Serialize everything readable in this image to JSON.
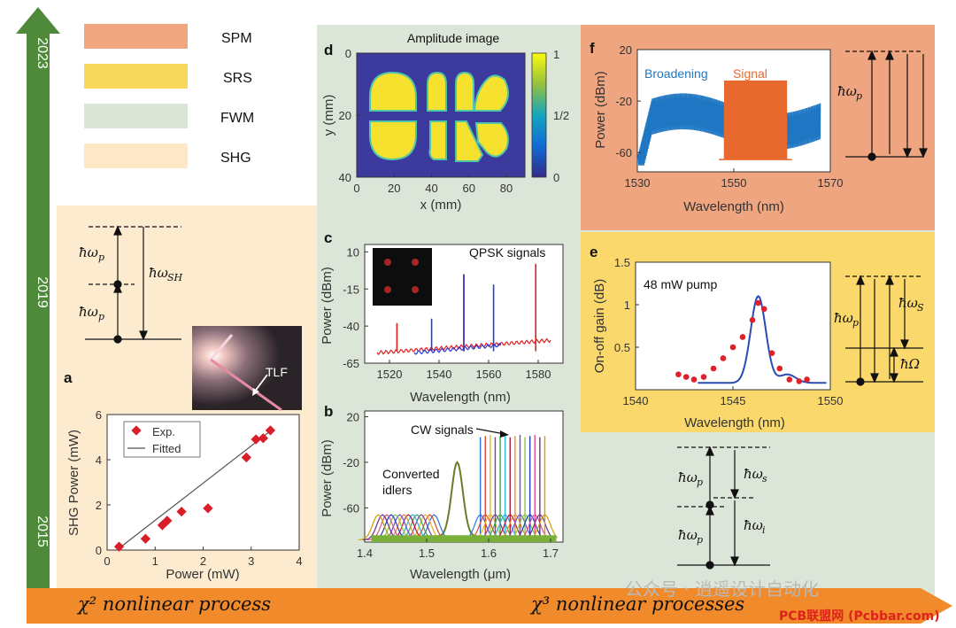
{
  "colors": {
    "spm": "#f0a77f",
    "srs": "#f7d85a",
    "fwm": "#dbe5d7",
    "shg": "#fde7c7",
    "timeline": "#4e8a3a",
    "arrow_bar": "#f08a2a",
    "panel_f_bg": "#eea580",
    "panel_e_bg": "#fad86b",
    "green_bg": "#dce6d8",
    "cream_bg": "#fdebd0"
  },
  "legend": [
    {
      "label": "SPM",
      "color_key": "spm"
    },
    {
      "label": "SRS",
      "color_key": "srs"
    },
    {
      "label": "FWM",
      "color_key": "fwm"
    },
    {
      "label": "SHG",
      "color_key": "shg"
    }
  ],
  "timeline": {
    "years": [
      "2023",
      "2019",
      "2015"
    ]
  },
  "bottom_bar": {
    "chi2": "χ² nonlinear process",
    "chi3": "χ³ nonlinear processes"
  },
  "watermark": {
    "text": "公众号 · 逍遥设计自动化",
    "corner": "PCB联盟网 (Pcbbar.com)"
  },
  "shg_diagram": {
    "labels": [
      "ħω",
      "p",
      "ħω",
      "p",
      "ħω",
      "SH"
    ]
  },
  "fwm_diagram": {
    "labels": [
      "ħω",
      "p",
      "ħω",
      "p",
      "ħω",
      "s",
      "ħω",
      "i"
    ]
  },
  "srs_diagram": {
    "labels": [
      "ħω",
      "p",
      "ħω",
      "S",
      "ħΩ"
    ]
  },
  "spm_diagram": {
    "labels": [
      "ħω",
      "p"
    ]
  },
  "photo": {
    "label": "TLF"
  },
  "chart_data": [
    {
      "panel": "a",
      "type": "scatter",
      "xlabel": "Power (mW)",
      "ylabel": "SHG Power (mW)",
      "xlim": [
        0,
        4
      ],
      "ylim": [
        0,
        6
      ],
      "xticks": [
        "0",
        "1",
        "2",
        "3",
        "4"
      ],
      "yticks": [
        "0",
        "2",
        "4",
        "6"
      ],
      "legend": [
        "Exp.",
        "Fitted"
      ],
      "series": [
        {
          "name": "Exp.",
          "x": [
            0.25,
            0.8,
            1.15,
            1.25,
            1.55,
            2.1,
            2.9,
            3.1,
            3.25,
            3.4
          ],
          "y": [
            0.15,
            0.5,
            1.1,
            1.3,
            1.7,
            1.85,
            4.1,
            4.9,
            4.95,
            5.3
          ]
        },
        {
          "name": "Fitted",
          "x": [
            0.2,
            3.45
          ],
          "y": [
            0.0,
            5.35
          ]
        }
      ]
    },
    {
      "panel": "d",
      "type": "heatmap",
      "title": "Amplitude image",
      "xlabel": "x (mm)",
      "ylabel": "y (mm)",
      "xticks": [
        "0",
        "20",
        "40",
        "60",
        "80"
      ],
      "yticks": [
        "0",
        "20",
        "40"
      ],
      "colorbar_ticks": [
        "1",
        "1/2",
        "0"
      ]
    },
    {
      "panel": "c",
      "type": "line",
      "xlabel": "Wavelength (nm)",
      "ylabel": "Power (dBm)",
      "xticks": [
        "1520",
        "1540",
        "1560",
        "1580"
      ],
      "yticks": [
        "10",
        "-15",
        "-40",
        "-65"
      ],
      "xlim": [
        1510,
        1590
      ],
      "ylim": [
        -65,
        15
      ],
      "annotation": "QPSK signals",
      "red_peaks": [
        [
          1523,
          -38
        ],
        [
          1550,
          -5
        ],
        [
          1579,
          2
        ]
      ],
      "blue_peaks": [
        [
          1537,
          -35
        ],
        [
          1550,
          -5
        ],
        [
          1562,
          -12
        ]
      ]
    },
    {
      "panel": "b",
      "type": "line",
      "xlabel": "Wavelength (μm)",
      "ylabel": "Power (dBm)",
      "xticks": [
        "1.4",
        "1.5",
        "1.6",
        "1.7"
      ],
      "yticks": [
        "20",
        "-20",
        "-60"
      ],
      "xlim": [
        1.4,
        1.7
      ],
      "ylim": [
        -90,
        25
      ],
      "annotations": [
        "CW signals",
        "Converted",
        "idlers"
      ]
    },
    {
      "panel": "f",
      "type": "line",
      "xlabel": "Wavelength (nm)",
      "ylabel": "Power (dBm)",
      "xticks": [
        "1530",
        "1550",
        "1570"
      ],
      "yticks": [
        "20",
        "-20",
        "-60"
      ],
      "xlim": [
        1530,
        1570
      ],
      "ylim": [
        -75,
        20
      ],
      "series": [
        {
          "name": "Broadening",
          "color": "#1f77c4"
        },
        {
          "name": "Signal",
          "color": "#e8692e"
        }
      ]
    },
    {
      "panel": "e",
      "type": "line",
      "xlabel": "Wavelength (nm)",
      "ylabel": "On-off gain (dB)",
      "xticks": [
        "1540",
        "1545",
        "1550"
      ],
      "yticks": [
        "1.5",
        "1",
        "0.5"
      ],
      "xlim": [
        1540,
        1550
      ],
      "ylim": [
        0,
        1.5
      ],
      "annotation": "48 mW pump",
      "points_x": [
        1542.2,
        1542.6,
        1543.0,
        1543.5,
        1544.0,
        1544.5,
        1545.0,
        1545.5,
        1546.0,
        1546.3,
        1546.6,
        1547.0,
        1547.4,
        1547.9,
        1548.4,
        1548.8
      ],
      "points_y": [
        0.18,
        0.15,
        0.12,
        0.15,
        0.25,
        0.37,
        0.5,
        0.62,
        0.82,
        1.02,
        0.95,
        0.43,
        0.25,
        0.12,
        0.1,
        0.12
      ]
    }
  ]
}
